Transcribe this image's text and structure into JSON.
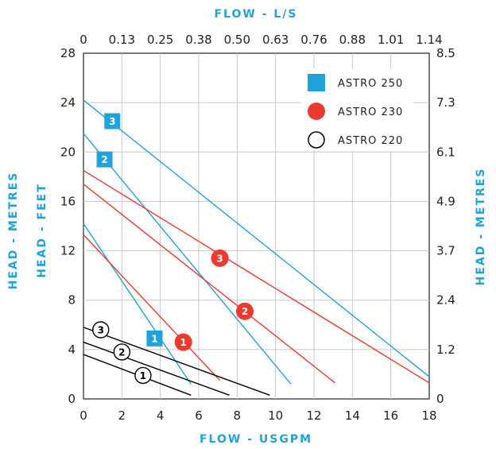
{
  "chart_data": {
    "type": "line",
    "x_axis": {
      "label": "FLOW - USGPM",
      "range": [
        0,
        18
      ],
      "ticks": [
        "0",
        "2",
        "4",
        "6",
        "8",
        "10",
        "12",
        "14",
        "16",
        "18"
      ]
    },
    "x2_axis": {
      "label": "FLOW - L/S",
      "range": [
        0,
        1.14
      ],
      "ticks": [
        "0",
        "0.13",
        "0.25",
        "0.38",
        "0.50",
        "0.63",
        "0.76",
        "0.88",
        "1.01",
        "1.14"
      ]
    },
    "y_axis_left": {
      "labels": [
        "HEAD - METRES",
        "HEAD - FEET"
      ],
      "range": [
        0,
        28
      ],
      "ticks": [
        "0",
        "4",
        "8",
        "12",
        "16",
        "20",
        "24",
        "28"
      ]
    },
    "y_axis_right": {
      "label": "HEAD - METRES",
      "range": [
        0,
        8.5
      ],
      "ticks": [
        "0",
        "1.2",
        "2.4",
        "3.7",
        "4.9",
        "6.1",
        "7.3",
        "8.5"
      ]
    },
    "grid": true,
    "legend": {
      "position": "top-right",
      "entries": [
        {
          "name": "ASTRO 250",
          "marker": "square",
          "color": "#1fa3d9"
        },
        {
          "name": "ASTRO 230",
          "marker": "circle-filled",
          "color": "#ee3a2e"
        },
        {
          "name": "ASTRO 220",
          "marker": "circle-open",
          "color": "#000000"
        }
      ]
    },
    "series": [
      {
        "group": "ASTRO 250",
        "speed": "1",
        "color": "#1fa3d9",
        "points": [
          [
            0,
            14.2
          ],
          [
            5.6,
            1.2
          ]
        ],
        "marker_at": [
          3.7,
          4.9
        ]
      },
      {
        "group": "ASTRO 250",
        "speed": "2",
        "color": "#1fa3d9",
        "points": [
          [
            0,
            21.5
          ],
          [
            10.8,
            1.2
          ]
        ],
        "marker_at": [
          1.1,
          19.4
        ]
      },
      {
        "group": "ASTRO 250",
        "speed": "3",
        "color": "#1fa3d9",
        "points": [
          [
            0,
            24.2
          ],
          [
            18,
            1.8
          ]
        ],
        "marker_at": [
          1.5,
          22.5
        ]
      },
      {
        "group": "ASTRO 230",
        "speed": "1",
        "color": "#ee3a2e",
        "points": [
          [
            0,
            13.3
          ],
          [
            7.1,
            1.5
          ]
        ],
        "marker_at": [
          5.2,
          4.6
        ]
      },
      {
        "group": "ASTRO 230",
        "speed": "2",
        "color": "#ee3a2e",
        "points": [
          [
            0,
            17.4
          ],
          [
            13.1,
            1.3
          ]
        ],
        "marker_at": [
          8.4,
          7.1
        ]
      },
      {
        "group": "ASTRO 230",
        "speed": "3",
        "color": "#ee3a2e",
        "points": [
          [
            0,
            18.5
          ],
          [
            18,
            1.3
          ]
        ],
        "marker_at": [
          7.1,
          11.4
        ]
      },
      {
        "group": "ASTRO 220",
        "speed": "1",
        "color": "#000000",
        "points": [
          [
            0,
            3.6
          ],
          [
            5.6,
            0.3
          ]
        ],
        "marker_at": [
          3.1,
          1.9
        ]
      },
      {
        "group": "ASTRO 220",
        "speed": "2",
        "color": "#000000",
        "points": [
          [
            0,
            4.6
          ],
          [
            7.6,
            0.3
          ]
        ],
        "marker_at": [
          2.0,
          3.8
        ]
      },
      {
        "group": "ASTRO 220",
        "speed": "3",
        "color": "#000000",
        "points": [
          [
            0,
            5.8
          ],
          [
            9.7,
            0.3
          ]
        ],
        "marker_at": [
          0.9,
          5.6
        ]
      }
    ]
  }
}
